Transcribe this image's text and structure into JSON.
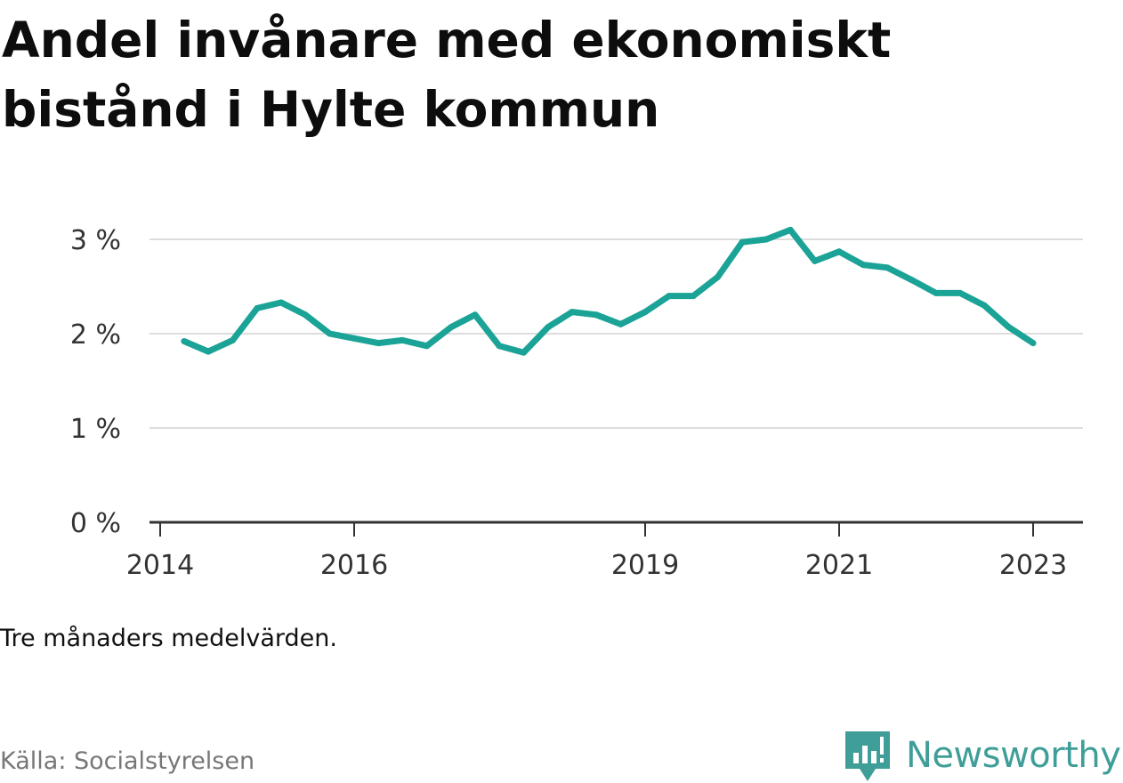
{
  "title": "Andel invånare med ekonomiskt bistånd i Hylte kommun",
  "note": "Tre månaders medelvärden.",
  "source": "Källa: Socialstyrelsen",
  "brand": {
    "name": "Newsworthy",
    "icon": "newsworthy-logo-icon",
    "color": "#3f9e98"
  },
  "colors": {
    "line": "#1aa396",
    "grid": "#dddddd",
    "axis": "#333333"
  },
  "chart_data": {
    "type": "line",
    "title": "Andel invånare med ekonomiskt bistånd i Hylte kommun",
    "xlabel": "",
    "ylabel": "",
    "ylim": [
      0,
      3.2
    ],
    "y_ticks": [
      0,
      1,
      2,
      3
    ],
    "y_tick_labels": [
      "0 %",
      "1 %",
      "2 %",
      "3 %"
    ],
    "x_ticks": [
      "2014-01-01",
      "2016-01-01",
      "2019-01-01",
      "2021-01-01",
      "2023-01-01"
    ],
    "x_tick_labels": [
      "2014",
      "2016",
      "2019",
      "2021",
      "2023"
    ],
    "grid": true,
    "legend": "none",
    "series": [
      {
        "values": [
          {
            "x": "2014-04-01",
            "y": 1.92
          },
          {
            "x": "2014-07-01",
            "y": 1.81
          },
          {
            "x": "2014-10-01",
            "y": 1.93
          },
          {
            "x": "2015-01-01",
            "y": 2.27
          },
          {
            "x": "2015-04-01",
            "y": 2.33
          },
          {
            "x": "2015-07-01",
            "y": 2.2
          },
          {
            "x": "2015-10-01",
            "y": 2.0
          },
          {
            "x": "2016-01-01",
            "y": 1.95
          },
          {
            "x": "2016-04-01",
            "y": 1.9
          },
          {
            "x": "2016-07-01",
            "y": 1.93
          },
          {
            "x": "2016-10-01",
            "y": 1.87
          },
          {
            "x": "2017-01-01",
            "y": 2.07
          },
          {
            "x": "2017-04-01",
            "y": 2.2
          },
          {
            "x": "2017-07-01",
            "y": 1.87
          },
          {
            "x": "2017-10-01",
            "y": 1.8
          },
          {
            "x": "2018-01-01",
            "y": 2.07
          },
          {
            "x": "2018-04-01",
            "y": 2.23
          },
          {
            "x": "2018-07-01",
            "y": 2.2
          },
          {
            "x": "2018-10-01",
            "y": 2.1
          },
          {
            "x": "2019-01-01",
            "y": 2.23
          },
          {
            "x": "2019-04-01",
            "y": 2.4
          },
          {
            "x": "2019-07-01",
            "y": 2.4
          },
          {
            "x": "2019-10-01",
            "y": 2.6
          },
          {
            "x": "2020-01-01",
            "y": 2.97
          },
          {
            "x": "2020-04-01",
            "y": 3.0
          },
          {
            "x": "2020-07-01",
            "y": 3.1
          },
          {
            "x": "2020-10-01",
            "y": 2.77
          },
          {
            "x": "2021-01-01",
            "y": 2.87
          },
          {
            "x": "2021-04-01",
            "y": 2.73
          },
          {
            "x": "2021-07-01",
            "y": 2.7
          },
          {
            "x": "2021-10-01",
            "y": 2.57
          },
          {
            "x": "2022-01-01",
            "y": 2.43
          },
          {
            "x": "2022-04-01",
            "y": 2.43
          },
          {
            "x": "2022-07-01",
            "y": 2.3
          },
          {
            "x": "2022-10-01",
            "y": 2.07
          },
          {
            "x": "2023-01-01",
            "y": 1.9
          }
        ]
      }
    ]
  }
}
